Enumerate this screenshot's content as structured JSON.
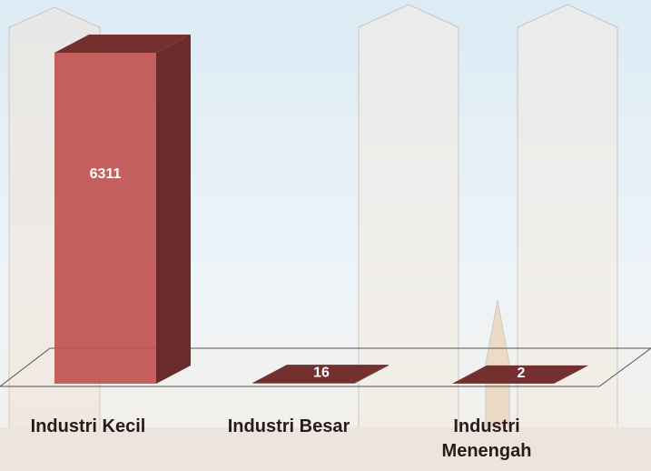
{
  "chart_data": {
    "type": "bar3d",
    "categories": [
      "Industri Kecil",
      "Industri Besar",
      "Industri Menengah"
    ],
    "values": [
      6311,
      16,
      2
    ],
    "color": "#c0504d"
  }
}
